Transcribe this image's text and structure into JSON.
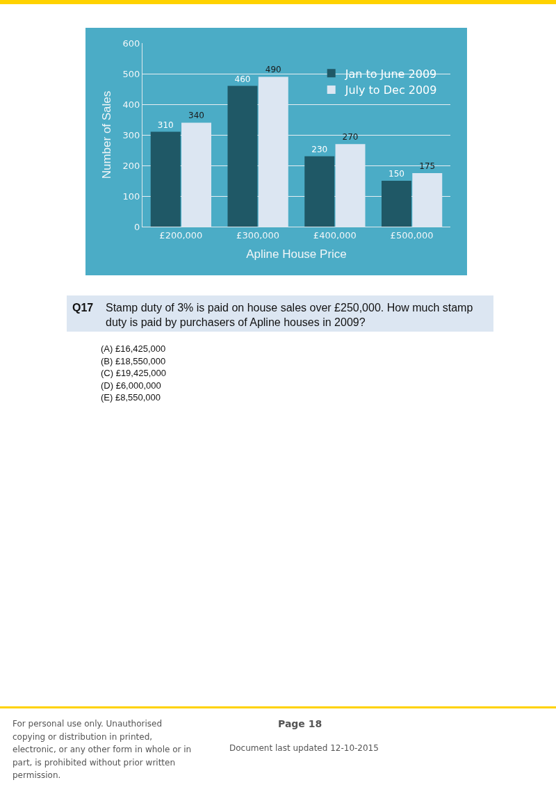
{
  "chart_data": {
    "type": "bar",
    "xlabel": "Apline House Price",
    "ylabel": "Number of Sales",
    "categories": [
      "£200,000",
      "£300,000",
      "£400,000",
      "£500,000"
    ],
    "series": [
      {
        "name": "Jan to June 2009",
        "color": "#1f5866",
        "values": [
          310,
          460,
          230,
          150
        ]
      },
      {
        "name": "July to Dec 2009",
        "color": "#dce6f2",
        "values": [
          340,
          490,
          270,
          175
        ]
      }
    ],
    "ylim": [
      0,
      600
    ],
    "yticks": [
      0,
      100,
      200,
      300,
      400,
      500,
      600
    ],
    "grid": "y",
    "legend": "top right",
    "data_labels": true,
    "annotations": [
      "Q17",
      "Stamp duty of 3% is paid on house sales over £250,000. How much stamp duty is paid by purchasers of Apline houses in 2009?",
      "(A)  £16,425,000",
      "(B)  £18,550,000",
      "(C)  £19,425,000",
      "(D)  £6,000,000",
      "(E)  £8,550,000",
      "For personal use only. Unauthorised copying or distribution in printed, electronic, or any other form in whole or in part, is prohibited without prior written permission.",
      "Page 18",
      "Document last updated 12-10-2015"
    ]
  }
}
